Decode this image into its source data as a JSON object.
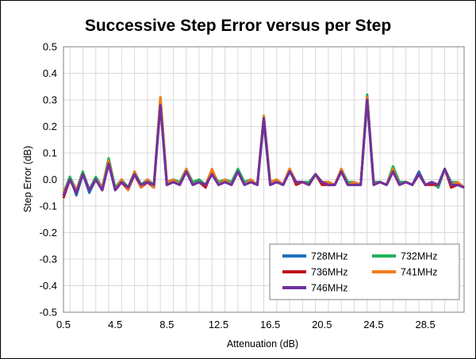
{
  "chart_data": {
    "type": "line",
    "title": "Successive Step Error versus per Step",
    "xlabel": "Attenuation (dB)",
    "ylabel": "Step Error (dB)",
    "xlim": [
      0.5,
      31.5
    ],
    "ylim": [
      -0.5,
      0.5
    ],
    "xticks": [
      0.5,
      4.5,
      8.5,
      12.5,
      16.5,
      20.5,
      24.5,
      28.5
    ],
    "yticks": [
      0.5,
      0.4,
      0.3,
      0.2,
      0.1,
      0.0,
      -0.1,
      -0.2,
      -0.3,
      -0.4,
      -0.5
    ],
    "ytick_labels": [
      "0.5",
      "0.4",
      "0.3",
      "0.2",
      "0.1",
      "0.0",
      "-0.1",
      "-0.2",
      "-0.3",
      "-0.4",
      "-0.5"
    ],
    "grid": true,
    "legend_position": "bottom-right",
    "x": [
      0.5,
      1,
      1.5,
      2,
      2.5,
      3,
      3.5,
      4,
      4.5,
      5,
      5.5,
      6,
      6.5,
      7,
      7.5,
      8,
      8.5,
      9,
      9.5,
      10,
      10.5,
      11,
      11.5,
      12,
      12.5,
      13,
      13.5,
      14,
      14.5,
      15,
      15.5,
      16,
      16.5,
      17,
      17.5,
      18,
      18.5,
      19,
      19.5,
      20,
      20.5,
      21,
      21.5,
      22,
      22.5,
      23,
      23.5,
      24,
      24.5,
      25,
      25.5,
      26,
      26.5,
      27,
      27.5,
      28,
      28.5,
      29,
      29.5,
      30,
      30.5,
      31,
      31.5
    ],
    "series": [
      {
        "name": "728MHz",
        "color": "#1F6FBF",
        "values": [
          -0.06,
          0.01,
          -0.06,
          0.02,
          -0.05,
          0.0,
          -0.04,
          0.06,
          -0.04,
          -0.01,
          -0.03,
          0.02,
          -0.02,
          -0.01,
          -0.03,
          0.29,
          -0.02,
          -0.01,
          -0.02,
          0.03,
          -0.02,
          -0.01,
          -0.02,
          0.02,
          -0.02,
          -0.01,
          -0.02,
          0.03,
          -0.02,
          -0.01,
          -0.02,
          0.22,
          -0.02,
          -0.01,
          -0.02,
          0.03,
          -0.01,
          -0.01,
          -0.02,
          0.02,
          -0.01,
          -0.02,
          -0.02,
          0.03,
          -0.02,
          -0.01,
          -0.02,
          0.3,
          -0.01,
          -0.01,
          -0.02,
          0.03,
          -0.01,
          -0.01,
          -0.02,
          0.03,
          -0.02,
          -0.01,
          -0.03,
          0.04,
          -0.02,
          -0.01,
          -0.03
        ]
      },
      {
        "name": "732MHz",
        "color": "#1FB35A",
        "values": [
          -0.05,
          0.01,
          -0.04,
          0.03,
          -0.04,
          0.01,
          -0.03,
          0.08,
          -0.03,
          0.0,
          -0.03,
          0.03,
          -0.02,
          0.0,
          -0.02,
          0.31,
          -0.01,
          0.0,
          -0.01,
          0.04,
          -0.01,
          0.0,
          -0.02,
          0.03,
          -0.01,
          0.0,
          -0.01,
          0.04,
          -0.01,
          0.0,
          -0.02,
          0.24,
          -0.01,
          0.0,
          -0.02,
          0.04,
          -0.01,
          -0.01,
          -0.01,
          0.02,
          -0.01,
          -0.01,
          -0.02,
          0.04,
          -0.01,
          -0.01,
          -0.02,
          0.32,
          -0.01,
          -0.01,
          -0.02,
          0.05,
          -0.01,
          -0.01,
          -0.02,
          0.02,
          -0.02,
          -0.01,
          -0.03,
          0.04,
          -0.01,
          -0.01,
          -0.03
        ]
      },
      {
        "name": "736MHz",
        "color": "#C0141C",
        "values": [
          -0.07,
          0.0,
          -0.05,
          0.02,
          -0.04,
          0.0,
          -0.04,
          0.07,
          -0.04,
          -0.01,
          -0.04,
          0.02,
          -0.03,
          -0.01,
          -0.03,
          0.3,
          -0.02,
          -0.01,
          -0.02,
          0.03,
          -0.02,
          -0.01,
          -0.03,
          0.03,
          -0.02,
          -0.01,
          -0.02,
          0.03,
          -0.02,
          -0.01,
          -0.02,
          0.23,
          -0.02,
          -0.01,
          -0.02,
          0.04,
          -0.02,
          -0.01,
          -0.02,
          0.02,
          -0.02,
          -0.02,
          -0.02,
          0.03,
          -0.02,
          -0.02,
          -0.02,
          0.31,
          -0.02,
          -0.01,
          -0.02,
          0.03,
          -0.02,
          -0.01,
          -0.02,
          0.02,
          -0.02,
          -0.02,
          -0.02,
          0.04,
          -0.03,
          -0.02,
          -0.03
        ]
      },
      {
        "name": "741MHz",
        "color": "#F07D1E",
        "values": [
          -0.05,
          0.0,
          -0.04,
          0.02,
          -0.04,
          0.0,
          -0.03,
          0.07,
          -0.04,
          0.0,
          -0.04,
          0.03,
          -0.03,
          0.0,
          -0.03,
          0.31,
          -0.01,
          0.0,
          -0.02,
          0.04,
          -0.02,
          -0.01,
          -0.02,
          0.04,
          -0.02,
          0.0,
          -0.02,
          0.03,
          -0.02,
          0.0,
          -0.02,
          0.24,
          -0.01,
          0.0,
          -0.02,
          0.04,
          -0.01,
          -0.01,
          -0.02,
          0.02,
          -0.01,
          -0.01,
          -0.02,
          0.04,
          -0.02,
          -0.01,
          -0.02,
          0.31,
          -0.02,
          -0.01,
          -0.02,
          0.04,
          -0.02,
          -0.01,
          -0.02,
          0.02,
          -0.02,
          -0.01,
          -0.02,
          0.04,
          -0.02,
          -0.01,
          -0.03
        ]
      },
      {
        "name": "746MHz",
        "color": "#7030A0",
        "values": [
          -0.06,
          0.0,
          -0.05,
          0.02,
          -0.04,
          0.0,
          -0.04,
          0.06,
          -0.04,
          -0.01,
          -0.03,
          0.02,
          -0.02,
          -0.01,
          -0.02,
          0.28,
          -0.02,
          -0.01,
          -0.02,
          0.03,
          -0.02,
          -0.01,
          -0.02,
          0.02,
          -0.02,
          -0.01,
          -0.02,
          0.03,
          -0.02,
          -0.01,
          -0.02,
          0.23,
          -0.02,
          -0.01,
          -0.02,
          0.03,
          -0.01,
          -0.01,
          -0.02,
          0.02,
          -0.01,
          -0.02,
          -0.02,
          0.03,
          -0.02,
          -0.02,
          -0.02,
          0.3,
          -0.02,
          -0.01,
          -0.02,
          0.03,
          -0.02,
          -0.01,
          -0.02,
          0.02,
          -0.02,
          -0.01,
          -0.02,
          0.04,
          -0.02,
          -0.02,
          -0.03
        ]
      }
    ]
  }
}
